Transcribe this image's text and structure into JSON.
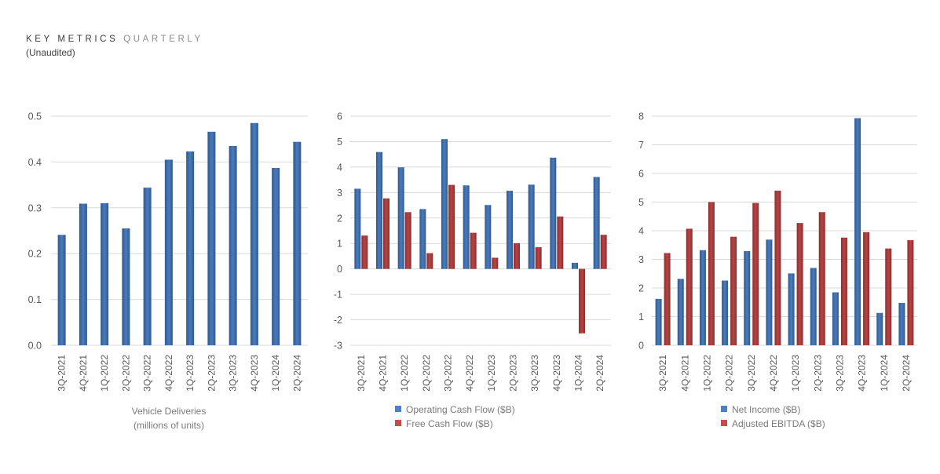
{
  "header": {
    "title_primary": "KEY METRICS",
    "title_secondary": "QUARTERLY",
    "subtitle": "(Unaudited)"
  },
  "colors": {
    "blue": "#3F6CA8",
    "red": "#A33A3A",
    "grid": "#D9D9D9",
    "legend_blue": "#4F81BD",
    "legend_red": "#C0504D"
  },
  "chart_data": [
    {
      "type": "bar",
      "title": "",
      "caption_lines": [
        "Vehicle Deliveries",
        "(millions of units)"
      ],
      "xlabel": "",
      "ylabel": "",
      "categories": [
        "3Q-2021",
        "4Q-2021",
        "1Q-2022",
        "2Q-2022",
        "3Q-2022",
        "4Q-2022",
        "1Q-2023",
        "2Q-2023",
        "3Q-2023",
        "4Q-2023",
        "1Q-2024",
        "2Q-2024"
      ],
      "series": [
        {
          "name": "Vehicle Deliveries (millions of units)",
          "color": "blue",
          "values": [
            0.241,
            0.309,
            0.31,
            0.255,
            0.344,
            0.405,
            0.423,
            0.466,
            0.435,
            0.485,
            0.387,
            0.444
          ]
        }
      ],
      "ylim": [
        0,
        0.5
      ],
      "yticks": [
        "0.0",
        "0.1",
        "0.2",
        "0.3",
        "0.4",
        "0.5"
      ],
      "ytick_values": [
        0,
        0.1,
        0.2,
        0.3,
        0.4,
        0.5
      ],
      "grid": true,
      "legend": "none"
    },
    {
      "type": "bar",
      "title": "",
      "caption_lines": [],
      "xlabel": "",
      "ylabel": "",
      "categories": [
        "3Q-2021",
        "4Q-2021",
        "1Q-2022",
        "2Q-2022",
        "3Q-2022",
        "4Q-2022",
        "1Q-2023",
        "2Q-2023",
        "3Q-2023",
        "4Q-2023",
        "1Q-2024",
        "2Q-2024"
      ],
      "series": [
        {
          "name": "Operating Cash Flow ($B)",
          "color": "blue",
          "values": [
            3.15,
            4.59,
            3.99,
            2.35,
            5.1,
            3.28,
            2.51,
            3.07,
            3.31,
            4.37,
            0.24,
            3.61
          ]
        },
        {
          "name": "Free Cash Flow ($B)",
          "color": "red",
          "values": [
            1.31,
            2.77,
            2.23,
            0.62,
            3.3,
            1.42,
            0.44,
            1.01,
            0.85,
            2.06,
            -2.53,
            1.34
          ]
        }
      ],
      "ylim": [
        -3,
        6
      ],
      "yticks": [
        "-3",
        "-2",
        "-1",
        "0",
        "1",
        "2",
        "3",
        "4",
        "5",
        "6"
      ],
      "ytick_values": [
        -3,
        -2,
        -1,
        0,
        1,
        2,
        3,
        4,
        5,
        6
      ],
      "grid": true,
      "legend": "bottom"
    },
    {
      "type": "bar",
      "title": "",
      "caption_lines": [],
      "xlabel": "",
      "ylabel": "",
      "categories": [
        "3Q-2021",
        "4Q-2021",
        "1Q-2022",
        "2Q-2022",
        "3Q-2022",
        "4Q-2022",
        "1Q-2023",
        "2Q-2023",
        "3Q-2023",
        "4Q-2023",
        "1Q-2024",
        "2Q-2024"
      ],
      "series": [
        {
          "name": "Net Income ($B)",
          "color": "blue",
          "values": [
            1.62,
            2.32,
            3.32,
            2.26,
            3.29,
            3.69,
            2.51,
            2.7,
            1.85,
            7.93,
            1.13,
            1.48
          ]
        },
        {
          "name": "Adjusted EBITDA ($B)",
          "color": "red",
          "values": [
            3.22,
            4.07,
            5.0,
            3.79,
            4.97,
            5.4,
            4.27,
            4.65,
            3.76,
            3.95,
            3.38,
            3.67
          ]
        }
      ],
      "ylim": [
        0,
        8
      ],
      "yticks": [
        "0",
        "1",
        "2",
        "3",
        "4",
        "5",
        "6",
        "7",
        "8"
      ],
      "ytick_values": [
        0,
        1,
        2,
        3,
        4,
        5,
        6,
        7,
        8
      ],
      "grid": true,
      "legend": "bottom"
    }
  ]
}
